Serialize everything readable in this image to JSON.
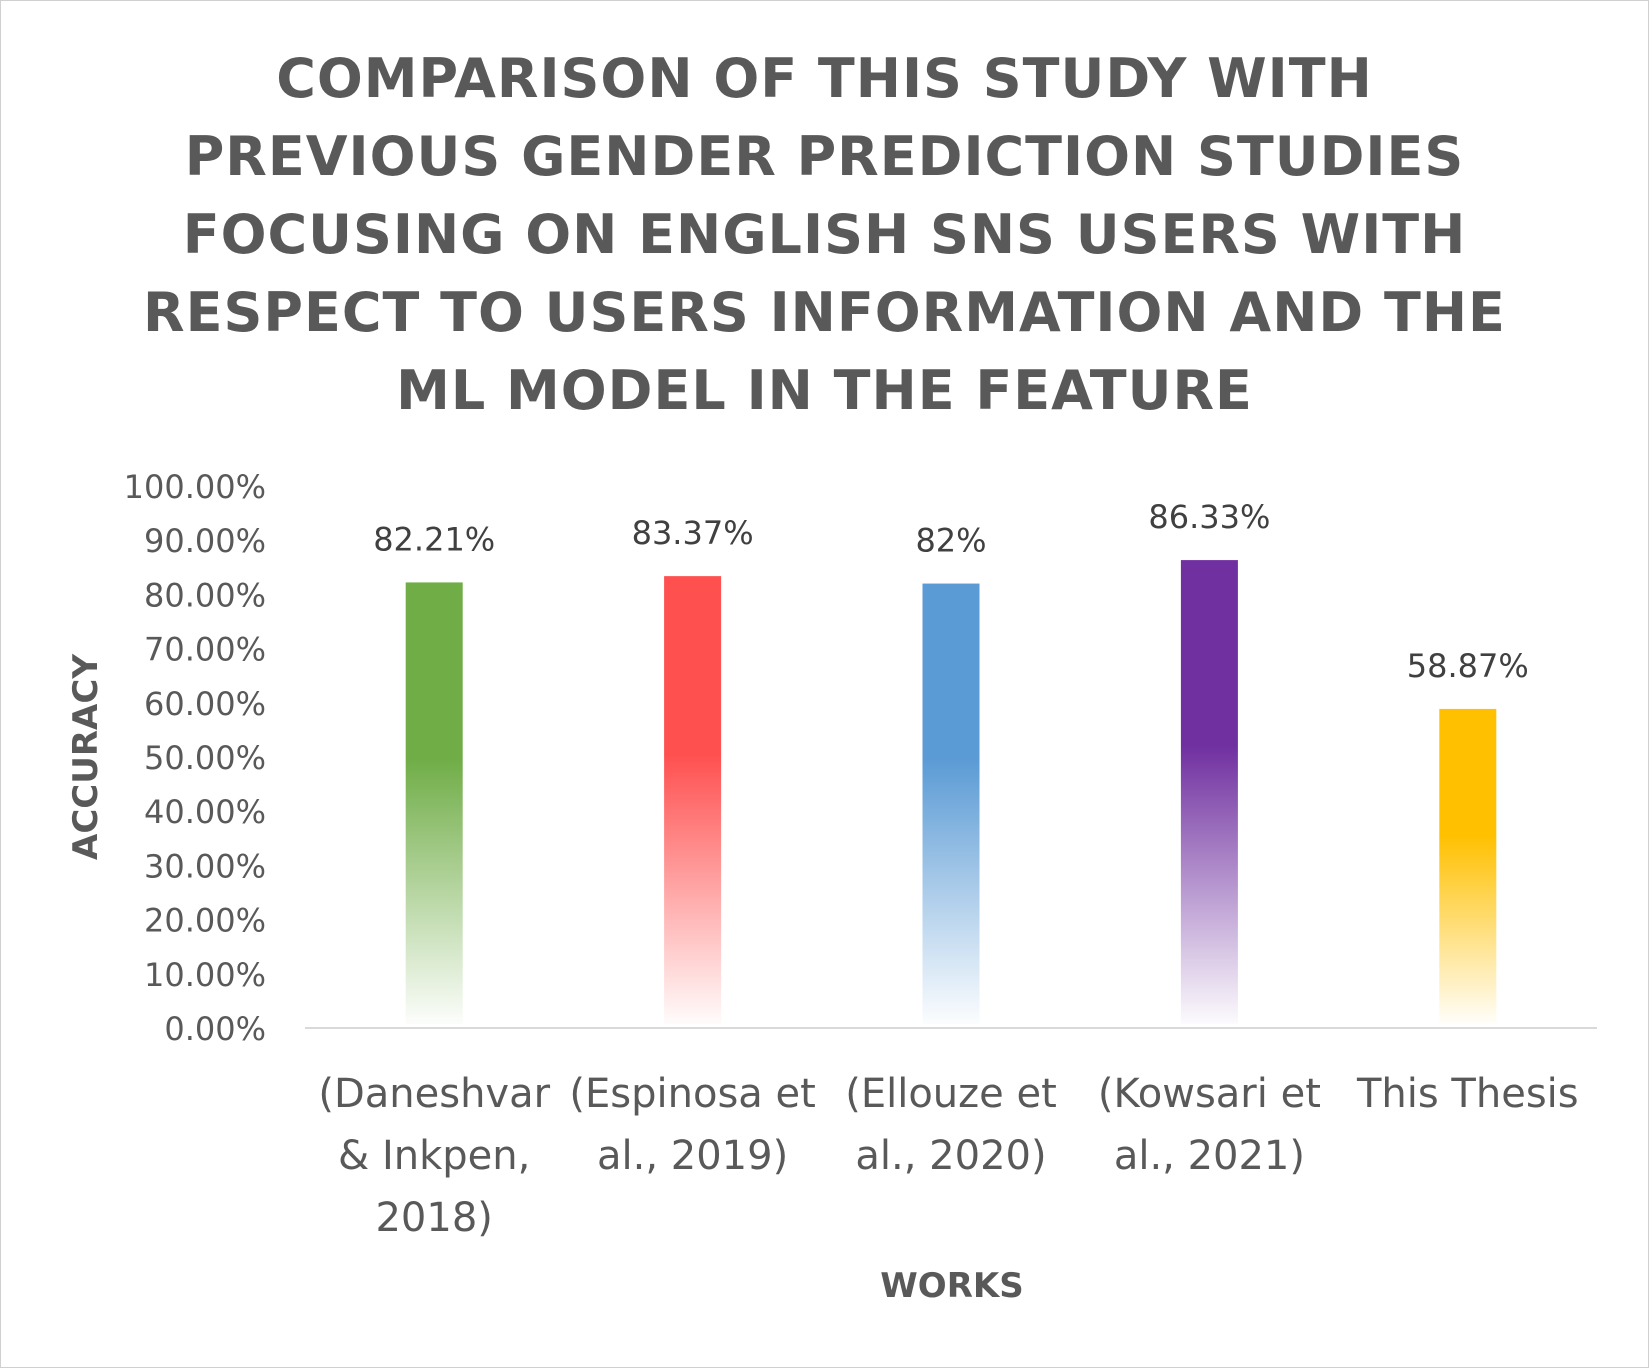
{
  "chart_data": {
    "type": "bar",
    "title_lines": [
      "COMPARISON OF THIS STUDY WITH",
      "PREVIOUS GENDER PREDICTION STUDIES",
      "FOCUSING ON ENGLISH SNS USERS WITH",
      "RESPECT TO USERS INFORMATION AND THE",
      "ML MODEL IN THE FEATURE"
    ],
    "xlabel": "WORKS",
    "ylabel": "ACCURACY",
    "ylim": [
      0,
      100
    ],
    "yticks": [
      0,
      10,
      20,
      30,
      40,
      50,
      60,
      70,
      80,
      90,
      100
    ],
    "ytick_labels": [
      "0.00%",
      "10.00%",
      "20.00%",
      "30.00%",
      "40.00%",
      "50.00%",
      "60.00%",
      "70.00%",
      "80.00%",
      "90.00%",
      "100.00%"
    ],
    "categories": [
      [
        "(Daneshvar",
        "& Inkpen,",
        "2018)"
      ],
      [
        "(Espinosa et",
        "al., 2019)"
      ],
      [
        "(Ellouze et",
        "al., 2020)"
      ],
      [
        "(Kowsari et",
        "al., 2021)"
      ],
      [
        "This Thesis"
      ]
    ],
    "values": [
      82.21,
      83.37,
      82,
      86.33,
      58.87
    ],
    "data_labels": [
      "82.21%",
      "83.37%",
      "82%",
      "86.33%",
      "58.87%"
    ],
    "colors": [
      "#70AD47",
      "#FF5050",
      "#5B9BD5",
      "#7030A0",
      "#FFC000"
    ],
    "grid": false,
    "legend": "none"
  }
}
